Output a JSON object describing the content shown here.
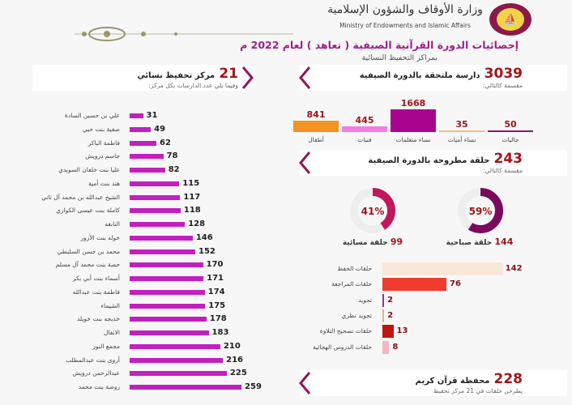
{
  "header": {
    "ministry_ar": "وزارة الأوقاف والشؤون الإسلامية",
    "ministry_en": "Ministry of Endowments and Islamic Affairs",
    "title": "إحصائيات الدورة القرآنية الصيفية ( تعاهد ) لعام 2022 م",
    "subtitle": "بمراكز التحفيظ النسائية"
  },
  "students": {
    "total": "3039",
    "title": "دارسة ملتحقة بالدورة الصيفية",
    "note": "مقسمة كالتالي:",
    "chart_data": {
      "type": "bar",
      "categories": [
        "أطفال",
        "فتيات",
        "نساء متعلمات",
        "نساء أميات",
        "جاليات"
      ],
      "values": [
        841,
        445,
        1668,
        35,
        50
      ],
      "colors": [
        "#f39322",
        "#f27ee6",
        "#a8048f",
        "#f5b98a",
        "#8b1a6a"
      ]
    }
  },
  "circles": {
    "total": "243",
    "title": "حلقة مطروحة بالدورة الصيفية",
    "note": "مقسمة كالتالي:",
    "morning": {
      "percent": 59,
      "percent_label": "59%",
      "count": "144",
      "label": "حلقة صباحية",
      "color": "#7a0a5e"
    },
    "evening": {
      "percent": 41,
      "percent_label": "41%",
      "count": "99",
      "label": "حلقة مسائية",
      "color": "#c2185b"
    },
    "chart_data": {
      "type": "bar",
      "categories": [
        "حلقات الحفظ",
        "حلقات المراجعة",
        "تجويد",
        "تجويد نظري",
        "حلقات تصحيح التلاوة",
        "حلقات الدروس الهجائية"
      ],
      "values": [
        142,
        76,
        2,
        2,
        13,
        8
      ],
      "colors": [
        "#fbe7d8",
        "#ef3b2c",
        "#a0309a",
        "#e2b48a",
        "#c0150f",
        "#f5b6c4"
      ]
    }
  },
  "teachers": {
    "total": "228",
    "title": "محفظة قرآن كريم",
    "note": "يطرحن حلقات في 21 مركز تحفيظ"
  },
  "centers": {
    "total": "21",
    "title": "مركز تحفيظ نسائي",
    "note": "وفيما يلي عدد الدارسات بكل مركز:",
    "chart_data": {
      "type": "bar",
      "categories": [
        "علي بن حسين السادة",
        "صفية بنت حيي",
        "فاطمة الباكر",
        "جاسم درويش",
        "عليا بنت خلفان السويدي",
        "هند بنت أمية",
        "الشيخ عبدالله بن محمد آل ثاني",
        "كاملة بنت عيسى الكواري",
        "النابغه",
        "خوله بنت الأزور",
        "محمد بن حسن السليطي",
        "حصة بنت محمد آل مسلم",
        "أسماء بنت أبي بكر",
        "فاطمة بنت عبدالله",
        "الشيماء",
        "خديجه بنت خويلد",
        "الانفال",
        "مجمع النور",
        "أروى بنت عبدالمطلب",
        "عبدالرحمن درويش",
        "روضة بنت محمد"
      ],
      "values": [
        31,
        49,
        62,
        78,
        82,
        115,
        117,
        118,
        128,
        146,
        152,
        170,
        171,
        174,
        175,
        178,
        183,
        210,
        216,
        225,
        259
      ],
      "color": "#c21fbf"
    }
  }
}
